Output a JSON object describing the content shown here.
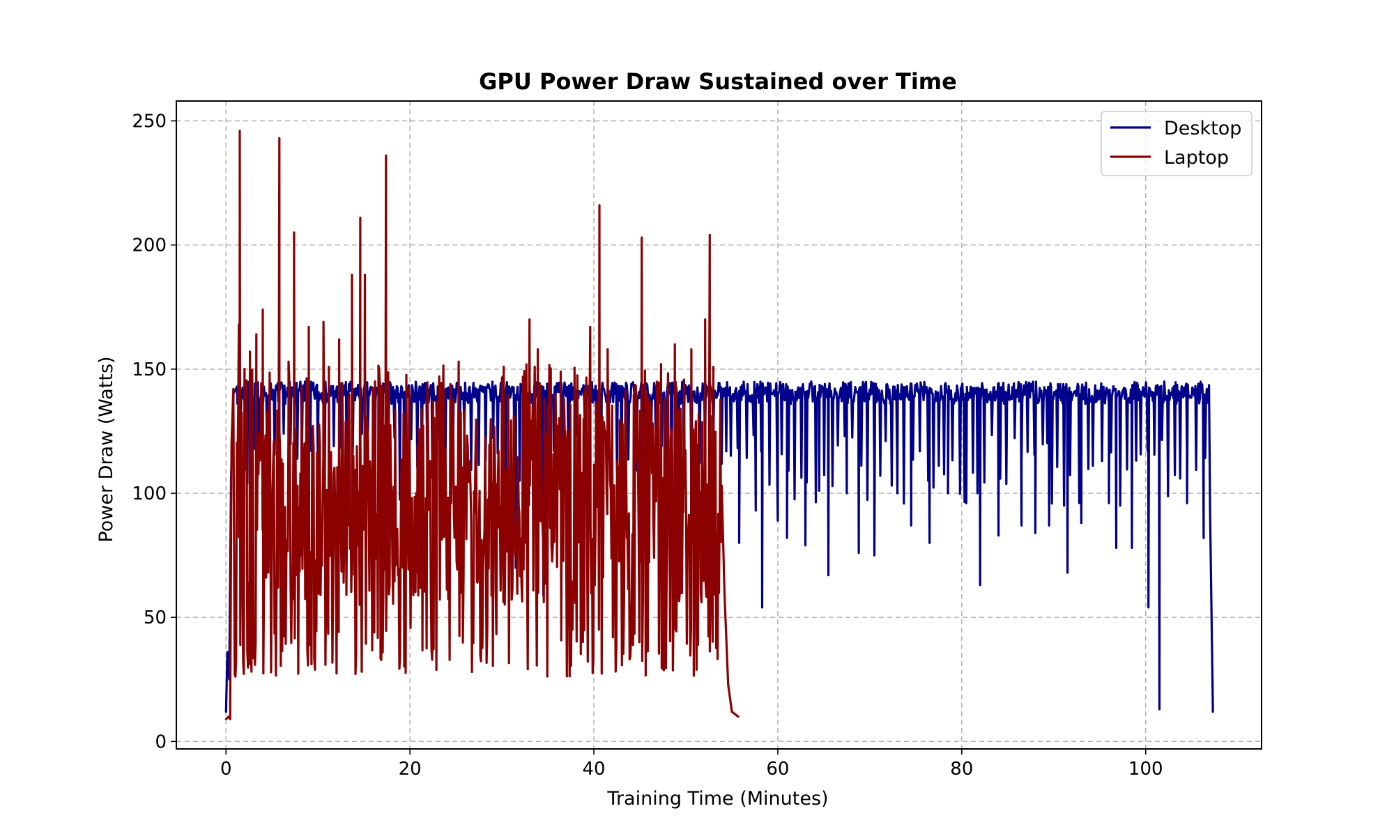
{
  "chart_data": {
    "type": "line",
    "title": "GPU Power Draw Sustained over Time",
    "xlabel": "Training Time (Minutes)",
    "ylabel": "Power Draw (Watts)",
    "xlim": [
      -5.4,
      112.6
    ],
    "ylim": [
      -3,
      258
    ],
    "xticks": [
      0,
      20,
      40,
      60,
      80,
      100
    ],
    "yticks": [
      0,
      50,
      100,
      150,
      200,
      250
    ],
    "grid": true,
    "legend_position": "top-right",
    "series": [
      {
        "name": "Desktop",
        "color": "#00008B",
        "sampling": {
          "x_start": 0,
          "x_end": 107.3,
          "count": 1300
        },
        "level_range": [
          136,
          145
        ],
        "base_y": 12,
        "ramp": [
          [
            0,
            12
          ],
          [
            0.15,
            36
          ],
          [
            0.35,
            25
          ],
          [
            0.55,
            105
          ],
          [
            0.8,
            140
          ],
          [
            1.2,
            143
          ]
        ],
        "dip_interval": 0.7,
        "dip_range": [
          95,
          125
        ],
        "notable_dips": [
          {
            "x": 8.8,
            "y": 101
          },
          {
            "x": 16.2,
            "y": 85
          },
          {
            "x": 31.5,
            "y": 70
          },
          {
            "x": 34.5,
            "y": 59
          },
          {
            "x": 55.8,
            "y": 80
          },
          {
            "x": 57.6,
            "y": 93
          },
          {
            "x": 58.3,
            "y": 54
          },
          {
            "x": 60.0,
            "y": 89
          },
          {
            "x": 61.0,
            "y": 82
          },
          {
            "x": 63.0,
            "y": 79
          },
          {
            "x": 64.5,
            "y": 101
          },
          {
            "x": 65.5,
            "y": 67
          },
          {
            "x": 67.5,
            "y": 100
          },
          {
            "x": 68.8,
            "y": 76
          },
          {
            "x": 70.5,
            "y": 75
          },
          {
            "x": 73.0,
            "y": 100
          },
          {
            "x": 74.5,
            "y": 87
          },
          {
            "x": 76.5,
            "y": 80
          },
          {
            "x": 78.5,
            "y": 100
          },
          {
            "x": 80.5,
            "y": 96
          },
          {
            "x": 82.0,
            "y": 63
          },
          {
            "x": 84.0,
            "y": 83
          },
          {
            "x": 86.5,
            "y": 87
          },
          {
            "x": 88.0,
            "y": 84
          },
          {
            "x": 89.5,
            "y": 87
          },
          {
            "x": 91.5,
            "y": 68
          },
          {
            "x": 93.0,
            "y": 88
          },
          {
            "x": 96.0,
            "y": 96
          },
          {
            "x": 96.8,
            "y": 78
          },
          {
            "x": 98.5,
            "y": 78
          },
          {
            "x": 100.3,
            "y": 54
          },
          {
            "x": 101.5,
            "y": 13
          },
          {
            "x": 104.5,
            "y": 96
          },
          {
            "x": 106.3,
            "y": 82
          },
          {
            "x": 107.0,
            "y": 93
          },
          {
            "x": 107.3,
            "y": 14
          }
        ]
      },
      {
        "name": "Laptop",
        "color": "#8B0000",
        "sampling": {
          "x_start": 0,
          "x_end": 55.7,
          "count": 700
        },
        "value_range": [
          26,
          152
        ],
        "base_y": 9,
        "start_points": [
          [
            0,
            9
          ],
          [
            0.3,
            10
          ],
          [
            0.45,
            9
          ],
          [
            0.6,
            120
          ],
          [
            0.8,
            142
          ]
        ],
        "tail_points": [
          [
            53.9,
            103
          ],
          [
            54.2,
            60
          ],
          [
            54.6,
            23
          ],
          [
            55.0,
            12
          ],
          [
            55.7,
            10
          ]
        ],
        "spikes": [
          {
            "x": 1.4,
            "y": 168
          },
          {
            "x": 1.5,
            "y": 246
          },
          {
            "x": 2.6,
            "y": 157
          },
          {
            "x": 3.3,
            "y": 164
          },
          {
            "x": 4.0,
            "y": 174
          },
          {
            "x": 5.8,
            "y": 243
          },
          {
            "x": 6.8,
            "y": 153
          },
          {
            "x": 7.4,
            "y": 205
          },
          {
            "x": 9.0,
            "y": 167
          },
          {
            "x": 10.6,
            "y": 169
          },
          {
            "x": 12.3,
            "y": 162
          },
          {
            "x": 13.7,
            "y": 188
          },
          {
            "x": 14.6,
            "y": 211
          },
          {
            "x": 15.1,
            "y": 188
          },
          {
            "x": 17.4,
            "y": 236
          },
          {
            "x": 22.5,
            "y": 137
          },
          {
            "x": 25.3,
            "y": 153
          },
          {
            "x": 30.2,
            "y": 151
          },
          {
            "x": 33.0,
            "y": 170
          },
          {
            "x": 33.9,
            "y": 158
          },
          {
            "x": 36.4,
            "y": 149
          },
          {
            "x": 39.6,
            "y": 167
          },
          {
            "x": 40.6,
            "y": 216
          },
          {
            "x": 41.5,
            "y": 158
          },
          {
            "x": 45.2,
            "y": 203
          },
          {
            "x": 47.3,
            "y": 152
          },
          {
            "x": 48.8,
            "y": 160
          },
          {
            "x": 50.6,
            "y": 158
          },
          {
            "x": 52.1,
            "y": 170
          },
          {
            "x": 52.6,
            "y": 204
          }
        ]
      }
    ]
  }
}
